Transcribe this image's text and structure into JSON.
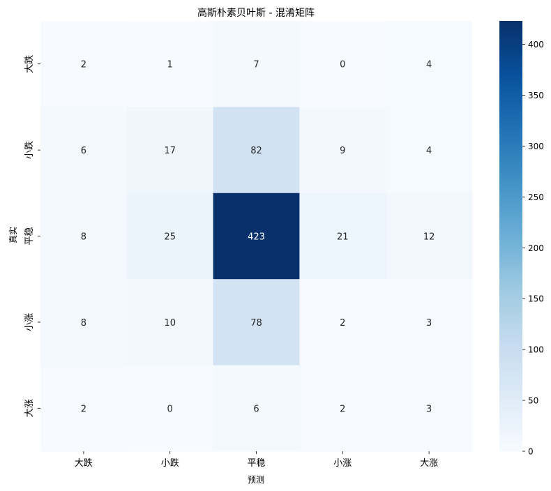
{
  "chart_data": {
    "type": "heatmap",
    "title": "高斯朴素贝叶斯 - 混淆矩阵",
    "xlabel": "预测",
    "ylabel": "真实",
    "x_categories": [
      "大跌",
      "小跌",
      "平稳",
      "小涨",
      "大涨"
    ],
    "y_categories": [
      "大跌",
      "小跌",
      "平稳",
      "小涨",
      "大涨"
    ],
    "values": [
      [
        2,
        1,
        7,
        0,
        4
      ],
      [
        6,
        17,
        82,
        9,
        4
      ],
      [
        8,
        25,
        423,
        21,
        12
      ],
      [
        8,
        10,
        78,
        2,
        3
      ],
      [
        2,
        0,
        6,
        2,
        3
      ]
    ],
    "colorbar": {
      "min": 0,
      "max": 423,
      "ticks": [
        0,
        50,
        100,
        150,
        200,
        250,
        300,
        350,
        400
      ]
    },
    "colormap": [
      "#f7fbff",
      "#deebf7",
      "#c6dbef",
      "#9ecae1",
      "#6baed6",
      "#4292c6",
      "#2171b5",
      "#08519c",
      "#08306b"
    ]
  }
}
